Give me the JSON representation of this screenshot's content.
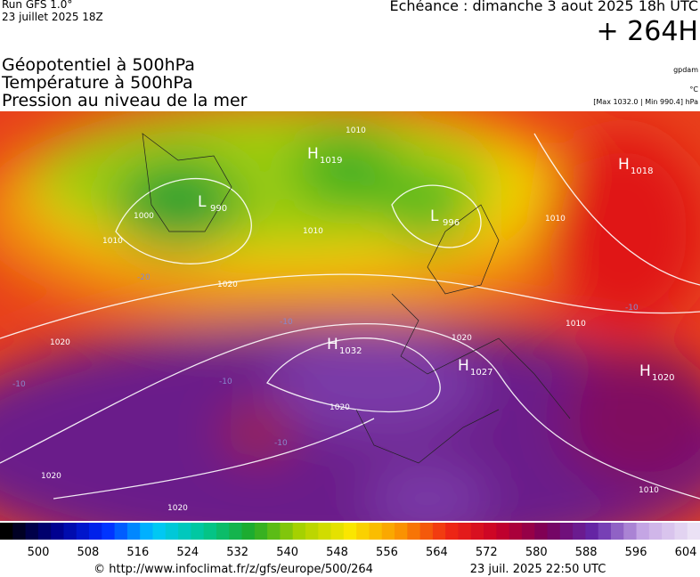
{
  "header": {
    "run": "Run GFS 1.0°",
    "date": "23 juillet 2025 18Z",
    "echeance": "Echéance : dimanche 3 aout 2025 18h UTC",
    "lead": "+ 264H"
  },
  "layers": [
    "Géopotentiel à 500hPa",
    "Température à 500hPa",
    "Pression au niveau de la mer"
  ],
  "units": [
    "gpdam",
    "°C",
    "[Max 1032.0 | Min 990.4] hPa"
  ],
  "centers": [
    {
      "letter": "H",
      "value": 1019
    },
    {
      "letter": "L",
      "value": 990
    },
    {
      "letter": "L",
      "value": 996
    },
    {
      "letter": "H",
      "value": 1018
    },
    {
      "letter": "H",
      "value": 1032
    },
    {
      "letter": "H",
      "value": 1027
    },
    {
      "letter": "H",
      "value": 1020
    }
  ],
  "isobar_labels": [
    1010,
    1000,
    1010,
    1010,
    1020,
    1020,
    1020,
    1020,
    1020,
    1020,
    1010,
    1010,
    1010
  ],
  "temperature_labels": [
    -10,
    -10,
    -10,
    -10,
    -10,
    -20
  ],
  "colorbar": {
    "labels": [
      500,
      508,
      516,
      524,
      532,
      540,
      548,
      556,
      564,
      572,
      580,
      588,
      596,
      604
    ]
  },
  "footer": {
    "url": "© http://www.infoclimat.fr/z/gfs/europe/500/264",
    "timestamp": "23 juil. 2025 22:50 UTC"
  }
}
